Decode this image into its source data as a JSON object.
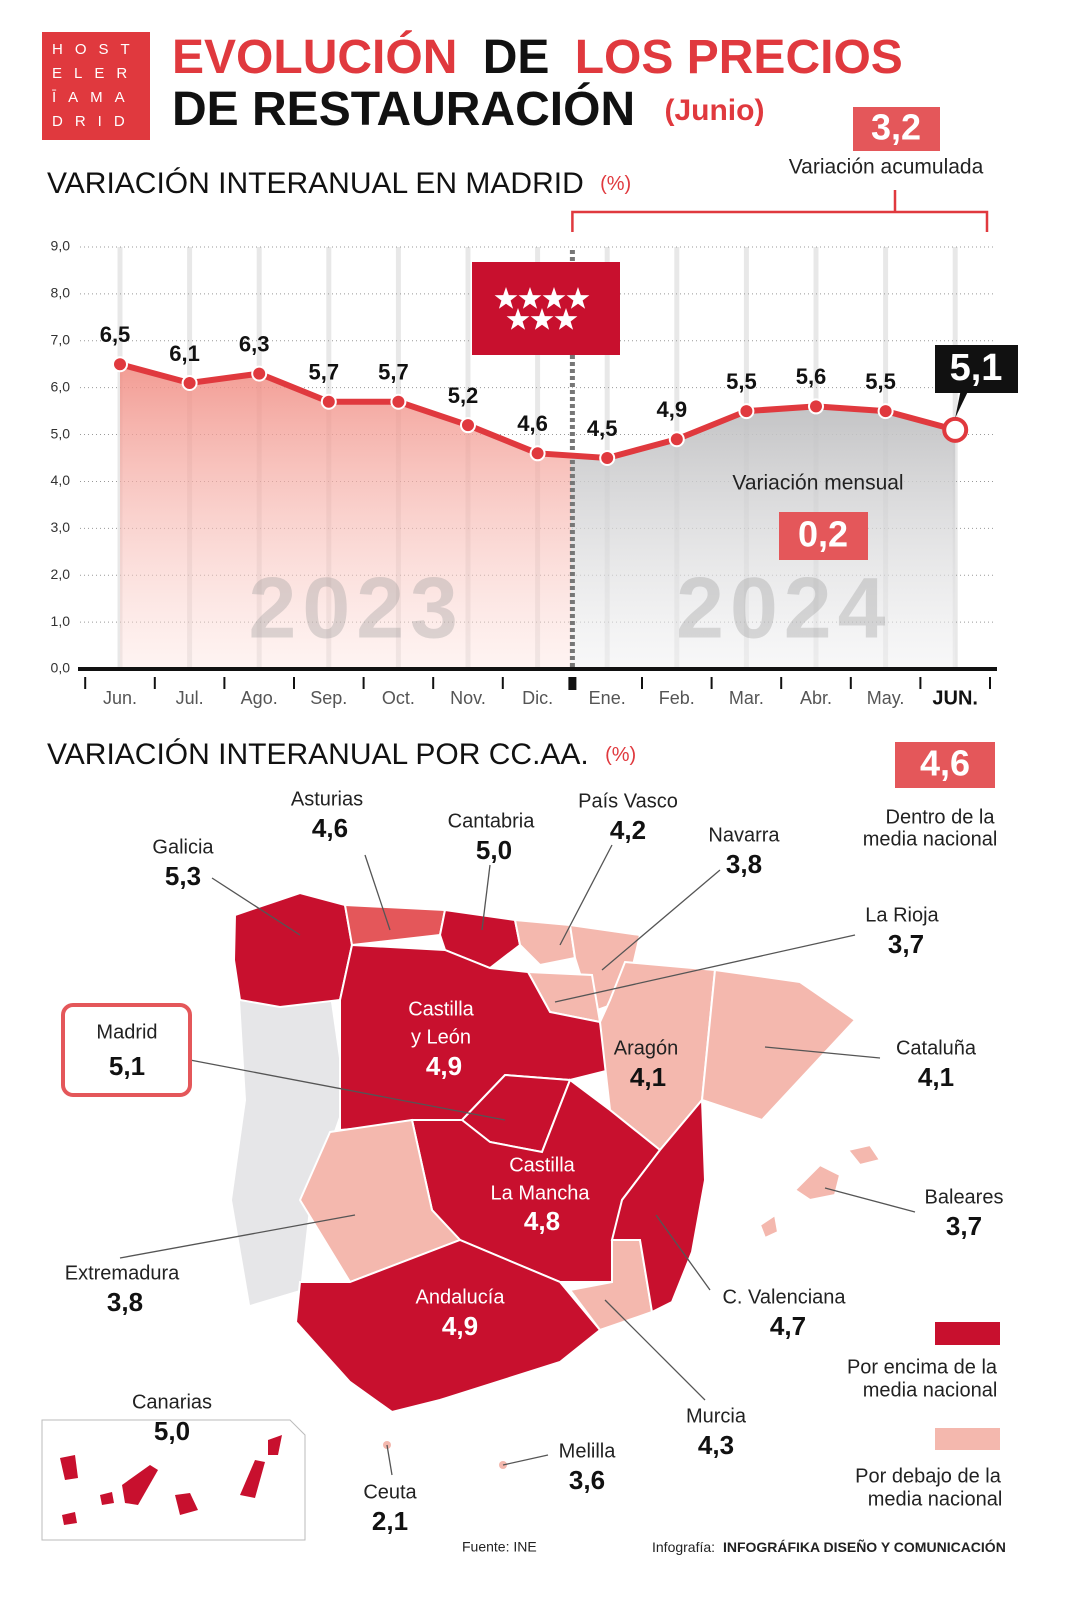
{
  "header": {
    "logo": [
      "HOST",
      "ELER",
      "ĪAMA",
      "DRID"
    ],
    "title_1": "EVOLUCIÓN",
    "title_2": "DE",
    "title_3": "LOS PRECIOS",
    "title_4": "DE RESTAURACIÓN",
    "subtitle": "(Junio)"
  },
  "chart_data": {
    "type": "line",
    "title": "VARIACIÓN INTERANUAL EN MADRID",
    "unit": "(%)",
    "categories": [
      "Jun.",
      "Jul.",
      "Ago.",
      "Sep.",
      "Oct.",
      "Nov.",
      "Dic.",
      "Ene.",
      "Feb.",
      "Mar.",
      "Abr.",
      "May.",
      "JUN."
    ],
    "values": [
      6.5,
      6.1,
      6.3,
      5.7,
      5.7,
      5.2,
      4.6,
      4.5,
      4.9,
      5.5,
      5.6,
      5.5,
      5.1
    ],
    "value_labels": [
      "6,5",
      "6,1",
      "6,3",
      "5,7",
      "5,7",
      "5,2",
      "4,6",
      "4,5",
      "4,9",
      "5,5",
      "5,6",
      "5,5",
      "5,1"
    ],
    "color": "#e0393e",
    "ylim": [
      0,
      9
    ],
    "yticks": [
      {
        "value": 0,
        "label": "0,0"
      },
      {
        "value": 1,
        "label": "1,0"
      },
      {
        "value": 2,
        "label": "2,0"
      },
      {
        "value": 3,
        "label": "3,0"
      },
      {
        "value": 4,
        "label": "4,0"
      },
      {
        "value": 5,
        "label": "5,0"
      },
      {
        "value": 6,
        "label": "6,0"
      },
      {
        "value": 7,
        "label": "7,0"
      },
      {
        "value": 8,
        "label": "8,0"
      },
      {
        "value": 9,
        "label": "9,0"
      }
    ],
    "grid": true,
    "periods": [
      "2023",
      "2024"
    ],
    "cumulative": {
      "label": "Variación acumulada",
      "value": "3,2"
    },
    "monthly": {
      "label": "Variación mensual",
      "value": "0,2"
    }
  },
  "map": {
    "title": "VARIACIÓN INTERANUAL POR CC.AA.",
    "unit": "(%)",
    "national": {
      "value": "4,6",
      "label": [
        "Dentro de la",
        "media nacional"
      ]
    },
    "regions": [
      {
        "name": [
          "Galicia"
        ],
        "value": "5,3"
      },
      {
        "name": [
          "Asturias"
        ],
        "value": "4,6"
      },
      {
        "name": [
          "Cantabria"
        ],
        "value": "5,0"
      },
      {
        "name": [
          "País Vasco"
        ],
        "value": "4,2"
      },
      {
        "name": [
          "Navarra"
        ],
        "value": "3,8"
      },
      {
        "name": [
          "La Rioja"
        ],
        "value": "3,7"
      },
      {
        "name": [
          "Castilla",
          "y León"
        ],
        "value": "4,9"
      },
      {
        "name": [
          "Madrid"
        ],
        "value": "5,1"
      },
      {
        "name": [
          "Aragón"
        ],
        "value": "4,1"
      },
      {
        "name": [
          "Cataluña"
        ],
        "value": "4,1"
      },
      {
        "name": [
          "Castilla",
          "La Mancha"
        ],
        "value": "4,8"
      },
      {
        "name": [
          "Baleares"
        ],
        "value": "3,7"
      },
      {
        "name": [
          "Extremadura"
        ],
        "value": "3,8"
      },
      {
        "name": [
          "C. Valenciana"
        ],
        "value": "4,7"
      },
      {
        "name": [
          "Andalucía"
        ],
        "value": "4,9"
      },
      {
        "name": [
          "Murcia"
        ],
        "value": "4,3"
      },
      {
        "name": [
          "Canarias"
        ],
        "value": "5,0"
      },
      {
        "name": [
          "Melilla"
        ],
        "value": "3,6"
      },
      {
        "name": [
          "Ceuta"
        ],
        "value": "2,1"
      }
    ],
    "legend": {
      "above": [
        "Por encima de la",
        "media nacional"
      ],
      "below": [
        "Por debajo de la",
        "media nacional"
      ]
    }
  },
  "footer": {
    "source": "Fuente: INE",
    "credit_label": "Infografía:",
    "credit": "INFOGRÁFIKA DISEÑO Y COMUNICACIÓN"
  }
}
